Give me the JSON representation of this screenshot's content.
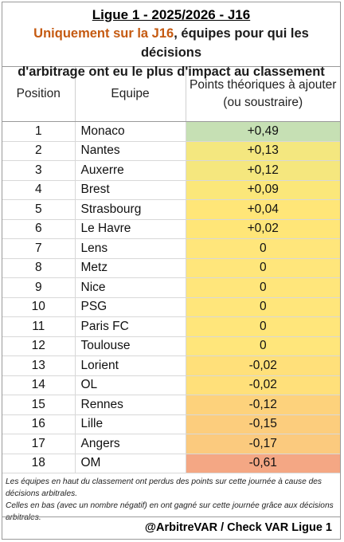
{
  "header": {
    "title": "Ligue 1 - 2025/2026 - J16",
    "subtitle_highlight": "Uniquement sur la J16",
    "subtitle_rest_line1": ", équipes pour qui les décisions",
    "subtitle_line2": "d'arbitrage ont eu le plus d'impact au classement"
  },
  "table": {
    "columns": {
      "position": "Position",
      "team": "Equipe",
      "points_line1": "Points théoriques à ajouter",
      "points_line2": "(ou soustraire)"
    },
    "rows": [
      {
        "pos": "1",
        "team": "Monaco",
        "points": "+0,49",
        "color": "#c6e0b4"
      },
      {
        "pos": "2",
        "team": "Nantes",
        "points": "+0,13",
        "color": "#f4e77f"
      },
      {
        "pos": "3",
        "team": "Auxerre",
        "points": "+0,12",
        "color": "#f5e77e"
      },
      {
        "pos": "4",
        "team": "Brest",
        "points": "+0,09",
        "color": "#fbe77a"
      },
      {
        "pos": "5",
        "team": "Strasbourg",
        "points": "+0,04",
        "color": "#ffe678"
      },
      {
        "pos": "6",
        "team": "Le Havre",
        "points": "+0,02",
        "color": "#ffe678"
      },
      {
        "pos": "7",
        "team": "Lens",
        "points": "0",
        "color": "#ffe67b"
      },
      {
        "pos": "8",
        "team": "Metz",
        "points": "0",
        "color": "#ffe67b"
      },
      {
        "pos": "9",
        "team": "Nice",
        "points": "0",
        "color": "#ffe67b"
      },
      {
        "pos": "10",
        "team": "PSG",
        "points": "0",
        "color": "#ffe67b"
      },
      {
        "pos": "11",
        "team": "Paris FC",
        "points": "0",
        "color": "#ffe67b"
      },
      {
        "pos": "12",
        "team": "Toulouse",
        "points": "0",
        "color": "#ffe67b"
      },
      {
        "pos": "13",
        "team": "Lorient",
        "points": "-0,02",
        "color": "#ffe07a"
      },
      {
        "pos": "14",
        "team": "OL",
        "points": "-0,02",
        "color": "#ffe07a"
      },
      {
        "pos": "15",
        "team": "Rennes",
        "points": "-0,12",
        "color": "#fdd27c"
      },
      {
        "pos": "16",
        "team": "Lille",
        "points": "-0,15",
        "color": "#fccd7d"
      },
      {
        "pos": "17",
        "team": "Angers",
        "points": "-0,17",
        "color": "#fbca7e"
      },
      {
        "pos": "18",
        "team": "OM",
        "points": "-0,61",
        "color": "#f4a784"
      }
    ]
  },
  "notes": {
    "line1": "Les équipes en haut du classement ont perdus des points sur cette journée à cause des décisions arbitrales.",
    "line2": "Celles en bas (avec un nombre négatif) en ont gagné sur cette journée grâce aux décisions arbitrales."
  },
  "footer": {
    "credit": "@ArbitreVAR / Check VAR Ligue 1"
  }
}
